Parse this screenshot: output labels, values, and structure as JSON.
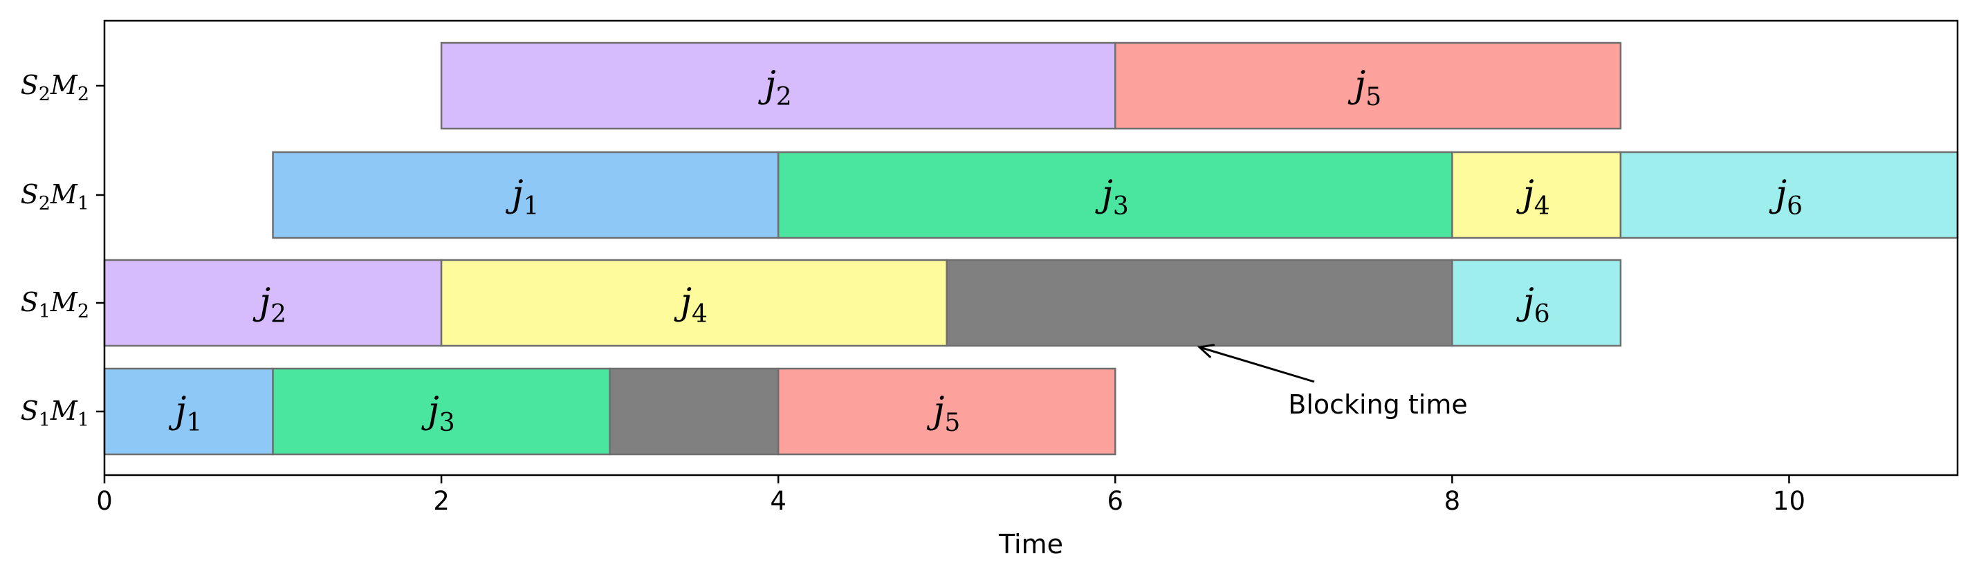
{
  "chart_data": {
    "type": "gantt",
    "xlabel": "Time",
    "xlim": [
      0,
      11
    ],
    "xticks": [
      0,
      2,
      4,
      6,
      8,
      10
    ],
    "grid": false,
    "rows": [
      {
        "label_main": "S",
        "label_sub1": "1",
        "label_mid": "M",
        "label_sub2": "1"
      },
      {
        "label_main": "S",
        "label_sub1": "1",
        "label_mid": "M",
        "label_sub2": "2"
      },
      {
        "label_main": "S",
        "label_sub1": "2",
        "label_mid": "M",
        "label_sub2": "1"
      },
      {
        "label_main": "S",
        "label_sub1": "2",
        "label_mid": "M",
        "label_sub2": "2"
      }
    ],
    "colors": {
      "j1": "#8ec8f6",
      "j2": "#d6bcfd",
      "j3": "#4ae6a0",
      "j4": "#fdfb9c",
      "j5": "#fca19b",
      "j6": "#9eeeee",
      "blocking": "#808080",
      "edge": "#6e6e6e"
    },
    "tasks": [
      {
        "row": 0,
        "start": 0,
        "end": 1,
        "job": "1",
        "color_key": "j1"
      },
      {
        "row": 0,
        "start": 1,
        "end": 3,
        "job": "3",
        "color_key": "j3"
      },
      {
        "row": 0,
        "start": 3,
        "end": 4,
        "job": "",
        "color_key": "blocking"
      },
      {
        "row": 0,
        "start": 4,
        "end": 6,
        "job": "5",
        "color_key": "j5"
      },
      {
        "row": 1,
        "start": 0,
        "end": 2,
        "job": "2",
        "color_key": "j2"
      },
      {
        "row": 1,
        "start": 2,
        "end": 5,
        "job": "4",
        "color_key": "j4"
      },
      {
        "row": 1,
        "start": 5,
        "end": 8,
        "job": "",
        "color_key": "blocking"
      },
      {
        "row": 1,
        "start": 8,
        "end": 9,
        "job": "6",
        "color_key": "j6"
      },
      {
        "row": 2,
        "start": 1,
        "end": 4,
        "job": "1",
        "color_key": "j1"
      },
      {
        "row": 2,
        "start": 4,
        "end": 8,
        "job": "3",
        "color_key": "j3"
      },
      {
        "row": 2,
        "start": 8,
        "end": 9,
        "job": "4",
        "color_key": "j4"
      },
      {
        "row": 2,
        "start": 9,
        "end": 11,
        "job": "6",
        "color_key": "j6"
      },
      {
        "row": 3,
        "start": 2,
        "end": 6,
        "job": "2",
        "color_key": "j2"
      },
      {
        "row": 3,
        "start": 6,
        "end": 9,
        "job": "5",
        "color_key": "j5"
      }
    ],
    "annotation": {
      "text": "Blocking time",
      "point": {
        "x": 6.5,
        "row": 1
      }
    }
  }
}
